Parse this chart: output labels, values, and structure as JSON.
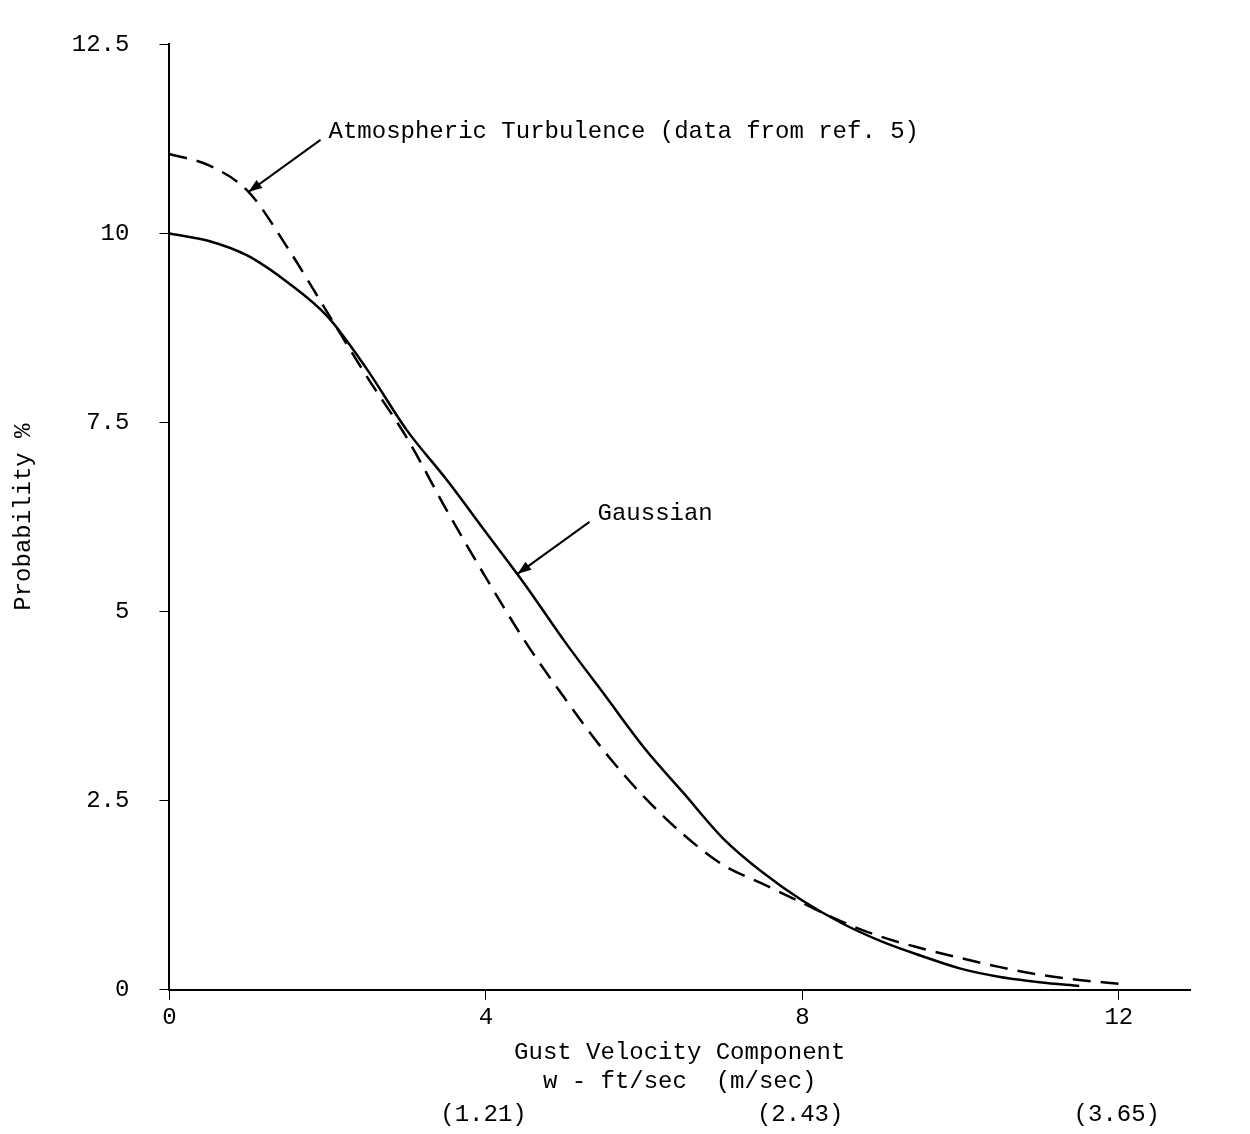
{
  "chart_data": {
    "type": "line",
    "xlabel": "Gust Velocity Component\nw - ft/sec  (m/sec)",
    "ylabel": "Probability %",
    "xlim": [
      0,
      12.9
    ],
    "xticks": [
      0,
      4,
      8,
      12
    ],
    "x2lim": [
      0,
      3.932
    ],
    "x2ticks": [
      {
        "value": 1.21,
        "label": "(1.21)"
      },
      {
        "value": 2.43,
        "label": "(2.43)"
      },
      {
        "value": 3.65,
        "label": "(3.65)"
      }
    ],
    "ylim": [
      0,
      12.5
    ],
    "yticks": [
      0,
      2.5,
      5,
      7.5,
      10,
      12.5
    ],
    "grid": false,
    "legend": false,
    "marker": "none",
    "series": [
      {
        "color": "#000000",
        "line_style": "dashed",
        "x": [
          0,
          0.5,
          1,
          1.5,
          2,
          2.5,
          3,
          3.5,
          4,
          4.5,
          5,
          5.5,
          6,
          6.5,
          7,
          7.5,
          8,
          8.5,
          9,
          9.5,
          10,
          10.5,
          11,
          11.5,
          12
        ],
        "values": [
          11.05,
          10.9,
          10.55,
          9.8,
          8.95,
          8.1,
          7.3,
          6.35,
          5.45,
          4.6,
          3.85,
          3.15,
          2.55,
          2.05,
          1.65,
          1.4,
          1.15,
          0.9,
          0.7,
          0.55,
          0.42,
          0.3,
          0.2,
          0.13,
          0.08
        ]
      },
      {
        "color": "#000000",
        "line_style": "solid",
        "x": [
          0,
          0.5,
          1,
          1.5,
          2,
          2.5,
          3,
          3.5,
          4,
          4.5,
          5,
          5.5,
          6,
          6.5,
          7,
          7.5,
          8,
          8.5,
          9,
          9.5,
          10,
          10.5,
          11,
          11.5
        ],
        "values": [
          10,
          9.9,
          9.7,
          9.35,
          8.9,
          8.2,
          7.4,
          6.75,
          6.05,
          5.35,
          4.6,
          3.9,
          3.2,
          2.6,
          2.0,
          1.55,
          1.18,
          0.88,
          0.64,
          0.45,
          0.28,
          0.17,
          0.1,
          0.05
        ]
      }
    ],
    "annotations": [
      {
        "text": "Atmospheric Turbulence (data from ref. 5)",
        "x": 1,
        "y": 10.55
      },
      {
        "text": "Gaussian",
        "x": 4.4,
        "y": 5.5
      }
    ]
  }
}
